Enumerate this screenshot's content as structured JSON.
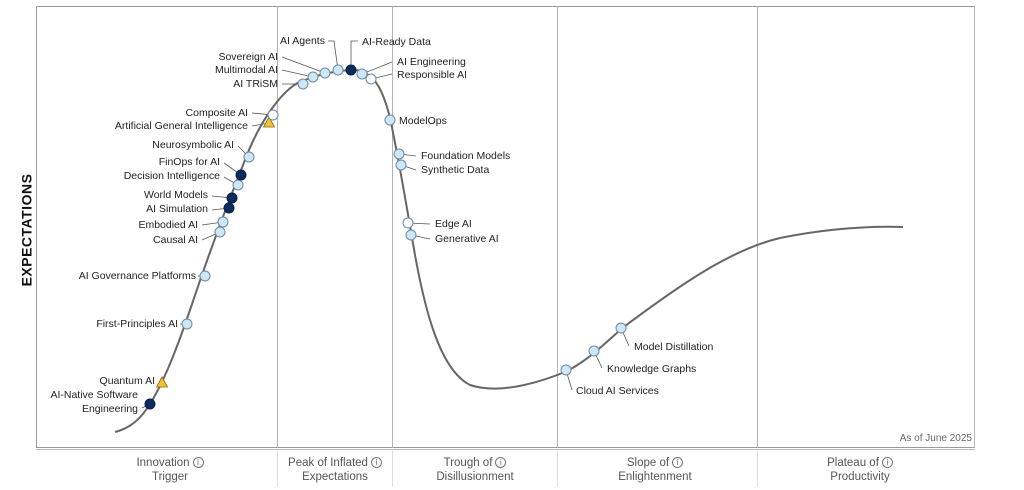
{
  "yaxis_title": "EXPECTATIONS",
  "as_of": "As of June 2025",
  "phases": [
    {
      "line1": "Innovation",
      "line2": "Trigger"
    },
    {
      "line1": "Peak of Inflated",
      "line2": "Expectations"
    },
    {
      "line1": "Trough of",
      "line2": "Disillusionment"
    },
    {
      "line1": "Slope of",
      "line2": "Enlightenment"
    },
    {
      "line1": "Plateau of",
      "line2": "Productivity"
    }
  ],
  "info_icon": "info-icon",
  "colors": {
    "curve": "#666666",
    "light_marker": "#cfe6f5",
    "dark_marker": "#0d2b5b",
    "white_marker": "#ffffff",
    "triangle_marker": "#f2c230"
  },
  "markers": [
    {
      "label": "AI-Native Software Engineering",
      "type": "dark"
    },
    {
      "label": "Quantum AI",
      "type": "triangle"
    },
    {
      "label": "First-Principles AI",
      "type": "light"
    },
    {
      "label": "AI Governance Platforms",
      "type": "light"
    },
    {
      "label": "Causal AI",
      "type": "light"
    },
    {
      "label": "Embodied AI",
      "type": "light"
    },
    {
      "label": "AI Simulation",
      "type": "dark"
    },
    {
      "label": "World Models",
      "type": "dark"
    },
    {
      "label": "Decision Intelligence",
      "type": "light"
    },
    {
      "label": "FinOps for AI",
      "type": "dark"
    },
    {
      "label": "Neurosymbolic AI",
      "type": "light"
    },
    {
      "label": "Artificial General Intelligence",
      "type": "triangle"
    },
    {
      "label": "Composite AI",
      "type": "white"
    },
    {
      "label": "AI TRiSM",
      "type": "light"
    },
    {
      "label": "Multimodal AI",
      "type": "light"
    },
    {
      "label": "Sovereign AI",
      "type": "light"
    },
    {
      "label": "AI Agents",
      "type": "light"
    },
    {
      "label": "AI-Ready Data",
      "type": "dark"
    },
    {
      "label": "AI Engineering",
      "type": "light"
    },
    {
      "label": "Responsible AI",
      "type": "white"
    },
    {
      "label": "ModelOps",
      "type": "light"
    },
    {
      "label": "Foundation Models",
      "type": "light"
    },
    {
      "label": "Synthetic Data",
      "type": "light"
    },
    {
      "label": "Edge AI",
      "type": "white"
    },
    {
      "label": "Generative AI",
      "type": "light"
    },
    {
      "label": "Cloud AI Services",
      "type": "light"
    },
    {
      "label": "Knowledge Graphs",
      "type": "light"
    },
    {
      "label": "Model Distillation",
      "type": "light"
    }
  ]
}
